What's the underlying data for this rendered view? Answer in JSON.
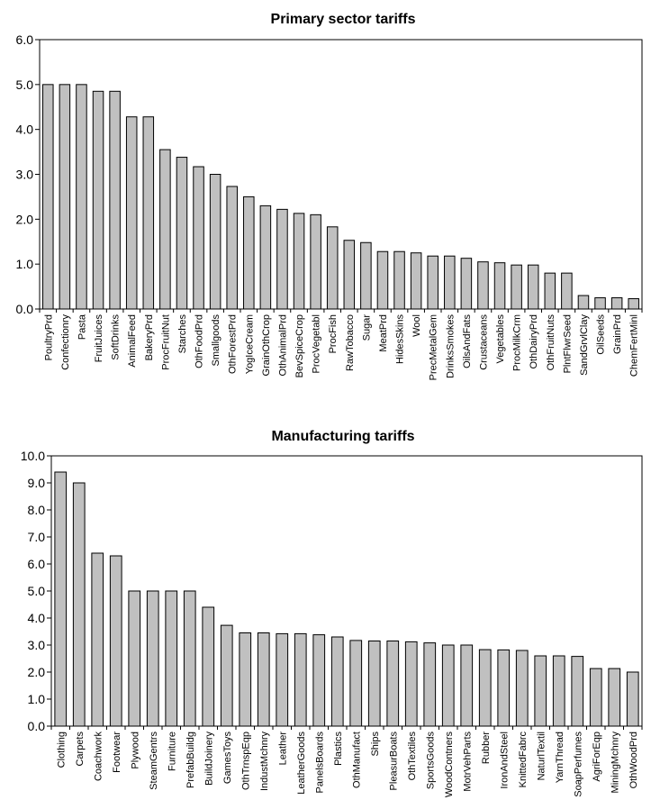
{
  "chart_data": [
    {
      "type": "bar",
      "title": "Primary sector tariffs",
      "xlabel": "",
      "ylabel": "",
      "ylim": [
        0,
        6
      ],
      "yticks": [
        "0.0",
        "1.0",
        "2.0",
        "3.0",
        "4.0",
        "5.0",
        "6.0"
      ],
      "grid": false,
      "categories": [
        "PoultryPrd",
        "Confectionry",
        "Pasta",
        "FruitJuices",
        "SoftDrinks",
        "AnimalFeed",
        "BakeryPrd",
        "ProcFruitNut",
        "Starches",
        "OthFoodPrd",
        "Smallgoods",
        "OthForestPrd",
        "YogIceCream",
        "GrainOthCrop",
        "OthAnimalPrd",
        "BevSpiceCrop",
        "ProcVegetabl",
        "ProcFish",
        "RawTobacco",
        "Sugar",
        "MeatPrd",
        "HidesSkins",
        "Wool",
        "PrecMetalGem",
        "DrinksSmokes",
        "OilsAndFats",
        "Crustaceans",
        "Vegetables",
        "ProcMilkCrm",
        "OthDairyPrd",
        "OthFruitNuts",
        "PlntFlwrSeed",
        "SandGrvlClay",
        "OilSeeds",
        "GrainPrd",
        "ChemFertMinl"
      ],
      "values": [
        5.0,
        5.0,
        5.0,
        4.85,
        4.85,
        4.28,
        4.28,
        3.55,
        3.38,
        3.17,
        3.0,
        2.73,
        2.5,
        2.3,
        2.22,
        2.13,
        2.1,
        1.83,
        1.53,
        1.48,
        1.28,
        1.28,
        1.25,
        1.18,
        1.18,
        1.13,
        1.05,
        1.03,
        0.98,
        0.98,
        0.8,
        0.8,
        0.3,
        0.25,
        0.25,
        0.23
      ]
    },
    {
      "type": "bar",
      "title": "Manufacturing tariffs",
      "xlabel": "",
      "ylabel": "",
      "ylim": [
        0,
        10
      ],
      "yticks": [
        "0.0",
        "1.0",
        "2.0",
        "3.0",
        "4.0",
        "5.0",
        "6.0",
        "7.0",
        "8.0",
        "9.0",
        "10.0"
      ],
      "grid": false,
      "categories": [
        "Clothing",
        "Carpets",
        "Coachwork",
        "Footwear",
        "Plywood",
        "SteamGentrs",
        "Furniture",
        "PrefabBuildg",
        "BuildJoinery",
        "GamesToys",
        "OthTrnspEqp",
        "IndustMchnry",
        "Leather",
        "LeatherGoods",
        "PanelsBoards",
        "Plastics",
        "OthManufact",
        "Ships",
        "PleasurBoats",
        "OthTextiles",
        "SportsGoods",
        "WoodContners",
        "MotrVehParts",
        "Rubber",
        "IronAndSteel",
        "KnittedFabrc",
        "NaturlTextil",
        "YarnThread",
        "SoapPerfumes",
        "AgriForEqp",
        "MiningMchnry",
        "OthWoodPrd"
      ],
      "values": [
        9.4,
        9.0,
        6.4,
        6.3,
        5.0,
        5.0,
        5.0,
        5.0,
        4.4,
        3.73,
        3.45,
        3.45,
        3.42,
        3.42,
        3.38,
        3.3,
        3.17,
        3.15,
        3.15,
        3.12,
        3.08,
        3.0,
        3.0,
        2.83,
        2.82,
        2.8,
        2.6,
        2.6,
        2.58,
        2.13,
        2.13,
        2.0
      ]
    }
  ]
}
